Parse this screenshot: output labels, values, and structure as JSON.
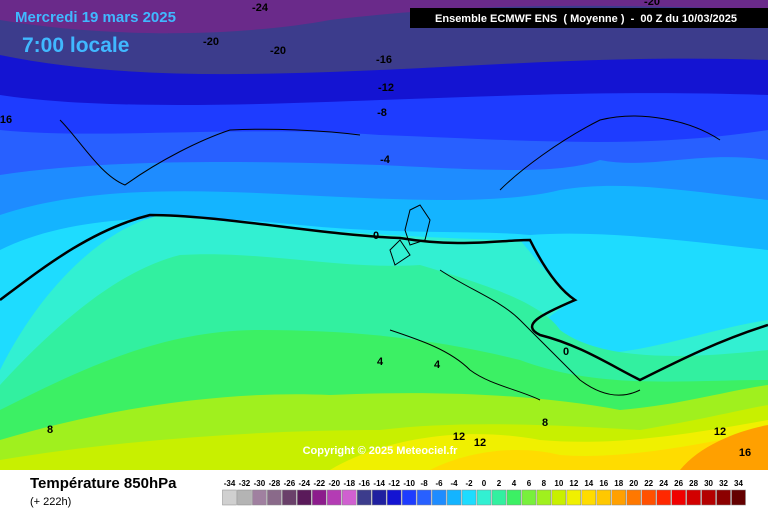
{
  "header": {
    "date": "Mercredi 19 mars 2025",
    "time": "7:00 locale",
    "model": "Ensemble ECMWF ENS  ( Moyenne )  -  00 Z du 10/03/2025"
  },
  "contour_labels": [
    -24,
    -20,
    -20,
    -20,
    -16,
    -12,
    -8,
    -4,
    0,
    0,
    4,
    4,
    16,
    8,
    12,
    12,
    8,
    12,
    16
  ],
  "copyright": "Copyright © 2025 Meteociel.fr",
  "footer": {
    "variable": "Température 850hPa",
    "lead": "(+ 222h)"
  },
  "scale": [
    {
      "value": -34,
      "color": "#d0d0d0"
    },
    {
      "value": -32,
      "color": "#b4b4b4"
    },
    {
      "value": -30,
      "color": "#a080a0"
    },
    {
      "value": -28,
      "color": "#8a6a8a"
    },
    {
      "value": -26,
      "color": "#6a406a"
    },
    {
      "value": -24,
      "color": "#5a1a5a"
    },
    {
      "value": -22,
      "color": "#8c1c8c"
    },
    {
      "value": -20,
      "color": "#b43cb4"
    },
    {
      "value": -18,
      "color": "#d060d0"
    },
    {
      "value": -16,
      "color": "#3c3c8c"
    },
    {
      "value": -14,
      "color": "#2020a0"
    },
    {
      "value": -12,
      "color": "#1414d2"
    },
    {
      "value": -10,
      "color": "#1e3cff"
    },
    {
      "value": -8,
      "color": "#2860ff"
    },
    {
      "value": -6,
      "color": "#1e8cff"
    },
    {
      "value": -4,
      "color": "#14b4ff"
    },
    {
      "value": -2,
      "color": "#1edcff"
    },
    {
      "value": 0,
      "color": "#32f0d2"
    },
    {
      "value": 2,
      "color": "#32f0a0"
    },
    {
      "value": 4,
      "color": "#3cf064"
    },
    {
      "value": 6,
      "color": "#78f03c"
    },
    {
      "value": 8,
      "color": "#a0f01e"
    },
    {
      "value": 10,
      "color": "#c8f000"
    },
    {
      "value": 12,
      "color": "#f0f000"
    },
    {
      "value": 14,
      "color": "#ffdc00"
    },
    {
      "value": 16,
      "color": "#ffc800"
    },
    {
      "value": 18,
      "color": "#ffa000"
    },
    {
      "value": 20,
      "color": "#ff7800"
    },
    {
      "value": 22,
      "color": "#ff5000"
    },
    {
      "value": 24,
      "color": "#ff2800"
    },
    {
      "value": 26,
      "color": "#f00000"
    },
    {
      "value": 28,
      "color": "#d20000"
    },
    {
      "value": 30,
      "color": "#b40000"
    },
    {
      "value": 32,
      "color": "#8c0000"
    },
    {
      "value": 34,
      "color": "#640000"
    }
  ]
}
